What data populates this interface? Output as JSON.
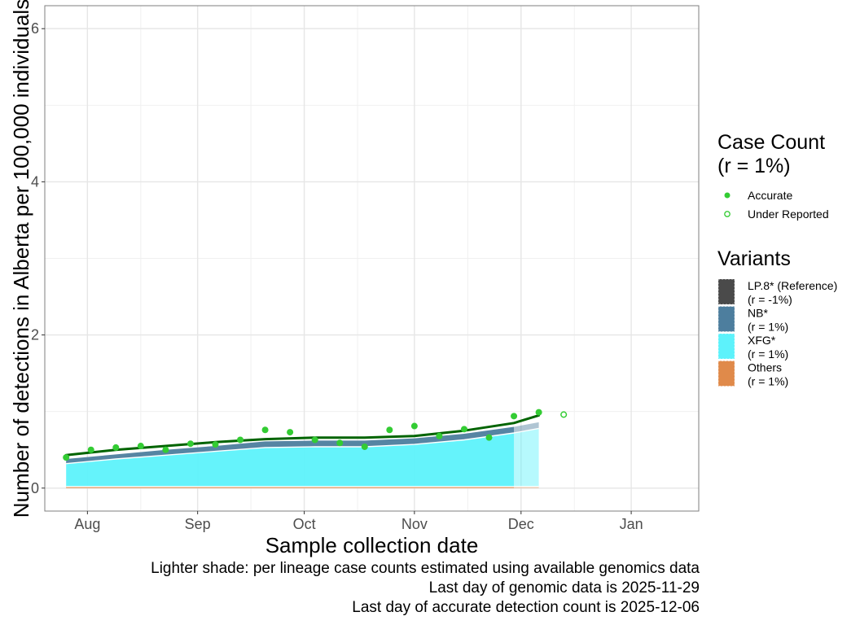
{
  "chart_data": {
    "type": "area",
    "xlabel": "Sample collection date",
    "ylabel": "Number of detections in Alberta per 100,000 individuals",
    "xlim": [
      "2025-07-20",
      "2026-01-20"
    ],
    "ylim": [
      -0.3,
      6.3
    ],
    "x_ticks": [
      {
        "date": "2025-08-01",
        "label": "Aug"
      },
      {
        "date": "2025-09-01",
        "label": "Sep"
      },
      {
        "date": "2025-10-01",
        "label": "Oct"
      },
      {
        "date": "2025-11-01",
        "label": "Nov"
      },
      {
        "date": "2025-12-01",
        "label": "Dec"
      },
      {
        "date": "2026-01-01",
        "label": "Jan"
      }
    ],
    "x_minor_ticks": [
      "2025-08-16",
      "2025-09-16",
      "2025-10-16",
      "2025-11-16",
      "2025-12-16"
    ],
    "y_ticks": [
      0,
      2,
      4,
      6
    ],
    "y_minor_ticks": [
      1,
      3,
      5
    ],
    "grid": true,
    "genomic_cutoff": "2025-11-29",
    "area_dates": [
      "2025-07-26",
      "2025-08-09",
      "2025-08-23",
      "2025-09-06",
      "2025-09-20",
      "2025-10-04",
      "2025-10-18",
      "2025-11-01",
      "2025-11-15",
      "2025-11-29",
      "2025-12-06"
    ],
    "series": [
      {
        "name": "Others",
        "rate_label": "(r = 1%)",
        "color": "#E08A4A",
        "values": [
          0.02,
          0.02,
          0.02,
          0.02,
          0.02,
          0.02,
          0.02,
          0.02,
          0.02,
          0.02,
          0.02
        ]
      },
      {
        "name": "XFG*",
        "rate_label": "(r = 1%)",
        "color": "#5DF2FB",
        "values": [
          0.3,
          0.36,
          0.41,
          0.46,
          0.51,
          0.52,
          0.52,
          0.55,
          0.61,
          0.7,
          0.76
        ]
      },
      {
        "name": "NB*",
        "rate_label": "(r = 1%)",
        "color": "#4D7E9E",
        "values": [
          0.06,
          0.06,
          0.07,
          0.07,
          0.08,
          0.08,
          0.08,
          0.08,
          0.08,
          0.08,
          0.08
        ]
      },
      {
        "name": "LP.8* (Reference)",
        "rate_label": "(r = -1%)",
        "color": "#4A4A4A",
        "values": [
          0.0,
          0.0,
          0.0,
          0.0,
          0.0,
          0.0,
          0.0,
          0.0,
          0.0,
          0.0,
          0.0
        ]
      }
    ],
    "trend_line": {
      "color": "#006400",
      "dates": [
        "2025-07-26",
        "2025-08-09",
        "2025-08-23",
        "2025-09-06",
        "2025-09-20",
        "2025-10-04",
        "2025-10-18",
        "2025-11-01",
        "2025-11-15",
        "2025-11-29",
        "2025-12-06"
      ],
      "values": [
        0.43,
        0.5,
        0.55,
        0.6,
        0.64,
        0.66,
        0.66,
        0.68,
        0.75,
        0.85,
        0.95
      ]
    },
    "case_points": [
      {
        "date": "2025-07-26",
        "value": 0.4,
        "status": "Accurate"
      },
      {
        "date": "2025-08-02",
        "value": 0.5,
        "status": "Accurate"
      },
      {
        "date": "2025-08-09",
        "value": 0.53,
        "status": "Accurate"
      },
      {
        "date": "2025-08-16",
        "value": 0.55,
        "status": "Accurate"
      },
      {
        "date": "2025-08-23",
        "value": 0.5,
        "status": "Accurate"
      },
      {
        "date": "2025-08-30",
        "value": 0.58,
        "status": "Accurate"
      },
      {
        "date": "2025-09-06",
        "value": 0.57,
        "status": "Accurate"
      },
      {
        "date": "2025-09-13",
        "value": 0.63,
        "status": "Accurate"
      },
      {
        "date": "2025-09-20",
        "value": 0.76,
        "status": "Accurate"
      },
      {
        "date": "2025-09-27",
        "value": 0.73,
        "status": "Accurate"
      },
      {
        "date": "2025-10-04",
        "value": 0.63,
        "status": "Accurate"
      },
      {
        "date": "2025-10-11",
        "value": 0.59,
        "status": "Accurate"
      },
      {
        "date": "2025-10-18",
        "value": 0.54,
        "status": "Accurate"
      },
      {
        "date": "2025-10-25",
        "value": 0.76,
        "status": "Accurate"
      },
      {
        "date": "2025-11-01",
        "value": 0.81,
        "status": "Accurate"
      },
      {
        "date": "2025-11-08",
        "value": 0.68,
        "status": "Accurate"
      },
      {
        "date": "2025-11-15",
        "value": 0.77,
        "status": "Accurate"
      },
      {
        "date": "2025-11-22",
        "value": 0.66,
        "status": "Accurate"
      },
      {
        "date": "2025-11-29",
        "value": 0.94,
        "status": "Accurate"
      },
      {
        "date": "2025-12-06",
        "value": 0.99,
        "status": "Accurate"
      },
      {
        "date": "2025-12-13",
        "value": 0.96,
        "status": "Under Reported"
      }
    ],
    "legend_case": {
      "title_line1": "Case Count",
      "title_line2": "(r = 1%)",
      "items": [
        {
          "label": "Accurate",
          "marker": "filled-circle",
          "color": "#33CC33"
        },
        {
          "label": "Under Reported",
          "marker": "open-circle",
          "color": "#33CC33"
        }
      ]
    },
    "legend_variants": {
      "title": "Variants",
      "order": [
        "LP.8* (Reference)",
        "NB*",
        "XFG*",
        "Others"
      ]
    },
    "legend_placement": "right"
  },
  "caption": {
    "line1": "Lighter shade: per lineage case counts estimated using available genomics data",
    "line2": "Last day of genomic data is 2025-11-29",
    "line3": "Last day of accurate detection count is 2025-12-06"
  }
}
